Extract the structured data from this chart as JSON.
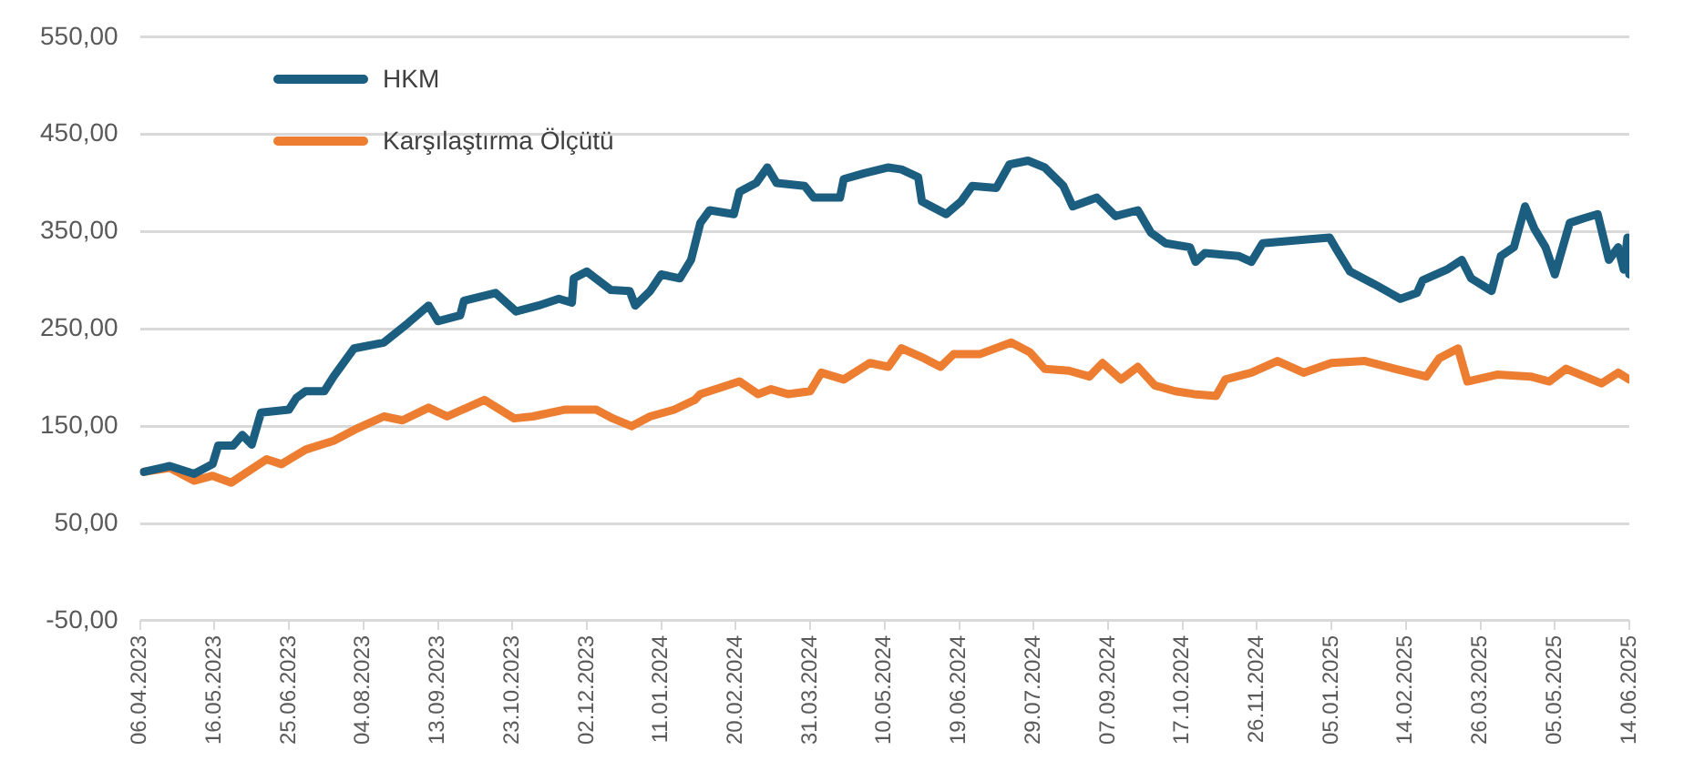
{
  "chart_data": {
    "type": "line",
    "xlim": [
      "2023-04-06",
      "2025-06-14"
    ],
    "xticks": [
      {
        "value": "2023-04-06",
        "label": "06.04.2023"
      },
      {
        "value": "2023-05-16",
        "label": "16.05.2023"
      },
      {
        "value": "2023-06-25",
        "label": "25.06.2023"
      },
      {
        "value": "2023-08-04",
        "label": "04.08.2023"
      },
      {
        "value": "2023-09-13",
        "label": "13.09.2023"
      },
      {
        "value": "2023-10-23",
        "label": "23.10.2023"
      },
      {
        "value": "2023-12-02",
        "label": "02.12.2023"
      },
      {
        "value": "2024-01-11",
        "label": "11.01.2024"
      },
      {
        "value": "2024-02-20",
        "label": "20.02.2024"
      },
      {
        "value": "2024-03-31",
        "label": "31.03.2024"
      },
      {
        "value": "2024-05-10",
        "label": "10.05.2024"
      },
      {
        "value": "2024-06-19",
        "label": "19.06.2024"
      },
      {
        "value": "2024-07-29",
        "label": "29.07.2024"
      },
      {
        "value": "2024-09-07",
        "label": "07.09.2024"
      },
      {
        "value": "2024-10-17",
        "label": "17.10.2024"
      },
      {
        "value": "2024-11-26",
        "label": "26.11.2024"
      },
      {
        "value": "2025-01-05",
        "label": "05.01.2025"
      },
      {
        "value": "2025-02-14",
        "label": "14.02.2025"
      },
      {
        "value": "2025-03-26",
        "label": "26.03.2025"
      },
      {
        "value": "2025-05-05",
        "label": "05.05.2025"
      },
      {
        "value": "2025-06-14",
        "label": "14.06.2025"
      }
    ],
    "ylim": [
      -50,
      550
    ],
    "yticks": [
      {
        "value": -50,
        "label": "-50,00"
      },
      {
        "value": 50,
        "label": "50,00"
      },
      {
        "value": 150,
        "label": "150,00"
      },
      {
        "value": 250,
        "label": "250,00"
      },
      {
        "value": 350,
        "label": "350,00"
      },
      {
        "value": 450,
        "label": "450,00"
      },
      {
        "value": 550,
        "label": "550,00"
      }
    ],
    "grid": "y",
    "legend": "top left",
    "marker": "none",
    "line_style": "solid",
    "series": [
      {
        "name": "HKM",
        "color": "#1b5e80",
        "x": [
          "2023-04-08",
          "2023-04-22",
          "2023-05-05",
          "2023-05-15",
          "2023-05-18",
          "2023-05-26",
          "2023-05-31",
          "2023-06-05",
          "2023-06-10",
          "2023-06-25",
          "2023-06-29",
          "2023-07-04",
          "2023-07-14",
          "2023-07-19",
          "2023-07-30",
          "2023-08-15",
          "2023-08-28",
          "2023-09-08",
          "2023-09-13",
          "2023-09-25",
          "2023-09-27",
          "2023-10-14",
          "2023-10-25",
          "2023-11-06",
          "2023-11-17",
          "2023-11-24",
          "2023-11-25",
          "2023-12-02",
          "2023-12-15",
          "2023-12-25",
          "2023-12-28",
          "2024-01-05",
          "2024-01-11",
          "2024-01-21",
          "2024-01-27",
          "2024-02-01",
          "2024-02-06",
          "2024-02-19",
          "2024-02-22",
          "2024-03-02",
          "2024-03-08",
          "2024-03-13",
          "2024-03-28",
          "2024-04-02",
          "2024-04-16",
          "2024-04-18",
          "2024-04-29",
          "2024-05-12",
          "2024-05-19",
          "2024-05-28",
          "2024-05-30",
          "2024-06-12",
          "2024-06-20",
          "2024-06-26",
          "2024-07-09",
          "2024-07-16",
          "2024-07-26",
          "2024-08-04",
          "2024-08-14",
          "2024-08-19",
          "2024-09-01",
          "2024-09-11",
          "2024-09-23",
          "2024-09-30",
          "2024-10-08",
          "2024-10-21",
          "2024-10-24",
          "2024-10-29",
          "2024-11-16",
          "2024-11-23",
          "2024-11-29",
          "2024-12-23",
          "2025-01-04",
          "2025-01-07",
          "2025-01-15",
          "2025-01-28",
          "2025-02-11",
          "2025-02-20",
          "2025-02-23",
          "2025-03-08",
          "2025-03-16",
          "2025-03-21",
          "2025-04-01",
          "2025-04-06",
          "2025-04-13",
          "2025-04-19",
          "2025-04-24",
          "2025-04-30",
          "2025-05-05",
          "2025-05-13",
          "2025-05-21",
          "2025-05-28",
          "2025-06-03",
          "2025-06-08",
          "2025-06-11",
          "2025-06-13",
          "2025-06-14"
        ],
        "values": [
          103,
          109,
          101,
          111,
          130,
          130,
          141,
          131,
          164,
          167,
          179,
          186,
          186,
          201,
          230,
          236,
          256,
          274,
          258,
          264,
          279,
          287,
          268,
          274,
          281,
          277,
          302,
          309,
          290,
          289,
          274,
          289,
          306,
          302,
          321,
          359,
          372,
          368,
          391,
          400,
          416,
          400,
          397,
          385,
          385,
          404,
          410,
          416,
          414,
          406,
          381,
          368,
          381,
          397,
          395,
          419,
          423,
          416,
          397,
          376,
          385,
          366,
          372,
          349,
          338,
          334,
          319,
          328,
          325,
          319,
          338,
          342,
          344,
          334,
          309,
          296,
          281,
          287,
          300,
          311,
          321,
          302,
          289,
          325,
          334,
          376,
          353,
          334,
          306,
          359,
          364,
          368,
          321,
          334,
          311,
          344,
          306
        ]
      },
      {
        "name": "Karşılaştırma Ölçütü",
        "color": "#ed7d31",
        "x": [
          "2023-04-08",
          "2023-04-22",
          "2023-05-05",
          "2023-05-15",
          "2023-05-25",
          "2023-06-13",
          "2023-06-21",
          "2023-07-04",
          "2023-07-19",
          "2023-08-01",
          "2023-08-15",
          "2023-08-25",
          "2023-09-08",
          "2023-09-18",
          "2023-10-08",
          "2023-10-24",
          "2023-11-03",
          "2023-11-20",
          "2023-12-07",
          "2023-12-16",
          "2023-12-26",
          "2024-01-05",
          "2024-01-18",
          "2024-01-29",
          "2024-02-01",
          "2024-02-22",
          "2024-03-03",
          "2024-03-10",
          "2024-03-19",
          "2024-03-31",
          "2024-04-06",
          "2024-04-18",
          "2024-05-02",
          "2024-05-12",
          "2024-05-19",
          "2024-05-31",
          "2024-06-09",
          "2024-06-16",
          "2024-06-30",
          "2024-07-17",
          "2024-07-27",
          "2024-08-04",
          "2024-08-17",
          "2024-08-28",
          "2024-09-04",
          "2024-09-14",
          "2024-09-23",
          "2024-10-02",
          "2024-10-13",
          "2024-10-23",
          "2024-11-04",
          "2024-11-09",
          "2024-11-23",
          "2024-12-07",
          "2024-12-21",
          "2025-01-05",
          "2025-01-23",
          "2025-02-08",
          "2025-02-25",
          "2025-03-04",
          "2025-03-14",
          "2025-03-19",
          "2025-04-04",
          "2025-04-22",
          "2025-05-02",
          "2025-05-11",
          "2025-05-30",
          "2025-06-08",
          "2025-06-14"
        ],
        "values": [
          103,
          107,
          94,
          99,
          92,
          116,
          111,
          126,
          135,
          148,
          160,
          156,
          169,
          160,
          177,
          158,
          160,
          167,
          167,
          158,
          150,
          160,
          167,
          177,
          183,
          196,
          183,
          188,
          183,
          186,
          205,
          198,
          215,
          211,
          230,
          220,
          211,
          224,
          224,
          236,
          226,
          209,
          207,
          201,
          215,
          198,
          211,
          192,
          186,
          183,
          181,
          198,
          205,
          217,
          205,
          215,
          217,
          209,
          201,
          220,
          230,
          196,
          203,
          201,
          196,
          209,
          194,
          205,
          198
        ]
      }
    ]
  }
}
